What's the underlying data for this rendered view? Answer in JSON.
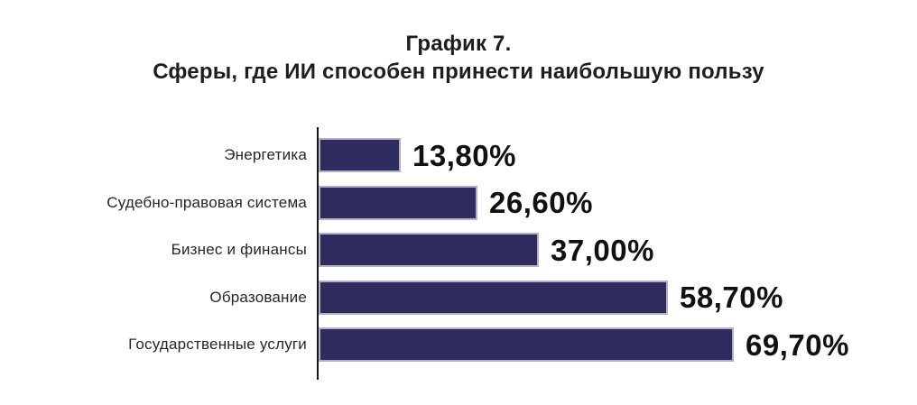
{
  "page": {
    "background": "#ffffff"
  },
  "chart_data": {
    "type": "bar",
    "orientation": "horizontal",
    "title_line1": "График 7.",
    "title_line2": "Сферы, где ИИ способен принести наибольшую пользу",
    "categories": [
      "Энергетика",
      "Судебно-правовая система",
      "Бизнес и финансы",
      "Образование",
      "Государственные услуги"
    ],
    "values": [
      13.8,
      26.6,
      37.0,
      58.7,
      69.7
    ],
    "value_labels": [
      "13,80%",
      "26,60%",
      "37,00%",
      "58,70%",
      "69,70%"
    ],
    "xlim": [
      0,
      100
    ],
    "grid": false,
    "legend": false,
    "bar_color": "#2e2c5e",
    "bar_border_color": "#b1afc9",
    "axis_color": "#16161f",
    "title_color": "#1e1e1e",
    "label_color": "#262626",
    "value_color": "#111111"
  }
}
